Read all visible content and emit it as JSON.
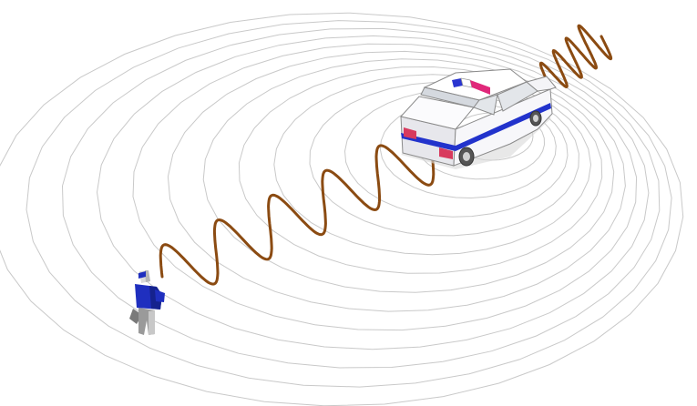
{
  "diagram": {
    "subject": "doppler-effect",
    "wavefront_ring_count": 14,
    "observer": {
      "position": "lower-left",
      "shirt_color": "#1f2fbf",
      "pants_color": "#9a9a9a"
    },
    "source_vehicle": {
      "kind": "police-car",
      "position": "upper-right",
      "body_color": "#f2f2f5",
      "stripe_color": "#2233cc",
      "siren_colors": [
        "#2a35d0",
        "#e0287a"
      ],
      "taillight_color": "#d83a5e"
    },
    "wave": {
      "color": "#8b4b12",
      "behind_source": "stretched",
      "ahead_of_source": "compressed"
    },
    "ring_color": "#c9c9c9"
  }
}
